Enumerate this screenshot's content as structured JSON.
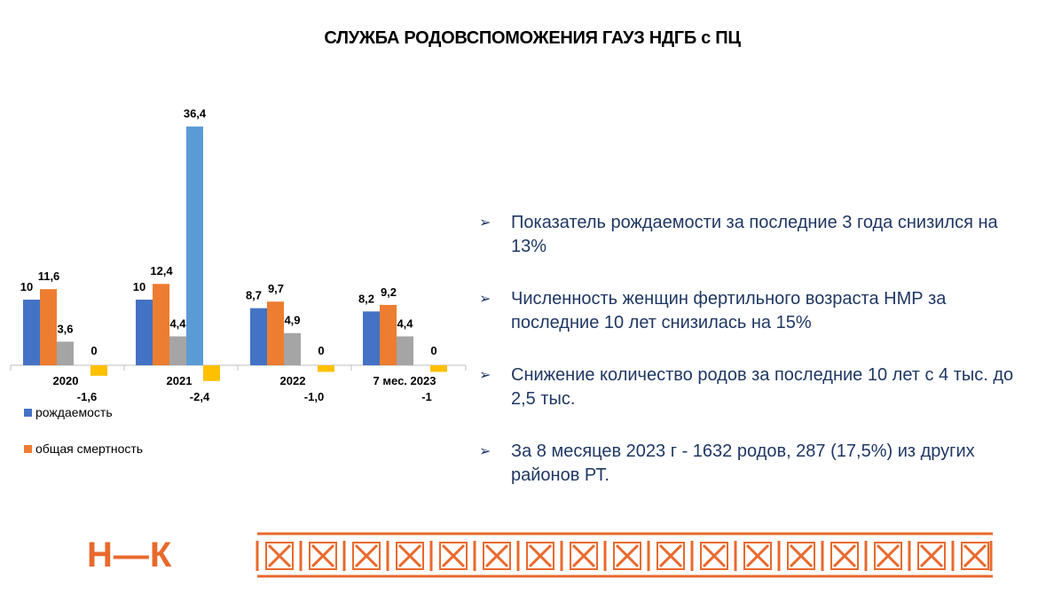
{
  "header": {
    "title": "СЛУЖБА  РОДОВСПОМОЖЕНИЯ ГАУЗ НДГБ с ПЦ"
  },
  "logo": {
    "text": "Н—К"
  },
  "bullets": [
    "Показатель рождаемости за последние 3 года снизился на 13%",
    "Численность женщин фертильного возраста НМР за последние 10 лет снизилась на 15%",
    "Снижение количество родов за последние 10 лет  с 4 тыс. до 2,5 тыс.",
    "За 8 месяцев 2023 г  - 1632 родов, 287 (17,5%) из других районов РТ."
  ],
  "bullet_icon": "arrow-right-icon",
  "colors": {
    "births": "#4472c4",
    "mortality": "#ed7d31",
    "series3": "#a5a5a5",
    "series4": "#5b9bd5",
    "series5": "#ffc000",
    "text_blue": "#1f3864",
    "accent": "#e9692c"
  },
  "chart_data": {
    "type": "bar",
    "categories": [
      "2020",
      "2021",
      "2022",
      "7 мес. 2023"
    ],
    "series": [
      {
        "name": "рождаемость",
        "values": [
          10,
          10,
          8.7,
          8.2
        ],
        "labels": [
          "10",
          "10",
          "8,7",
          "8,2"
        ],
        "color": "#4472c4"
      },
      {
        "name": "общая смертность",
        "values": [
          11.6,
          12.4,
          9.7,
          9.2
        ],
        "labels": [
          "11,6",
          "12,4",
          "9,7",
          "9,2"
        ],
        "color": "#ed7d31"
      },
      {
        "values": [
          3.6,
          4.4,
          4.9,
          4.4
        ],
        "labels": [
          "3,6",
          "4,4",
          "4,9",
          "4,4"
        ],
        "color": "#a5a5a5"
      },
      {
        "values": [
          0,
          36.4,
          0,
          0
        ],
        "labels": [
          "0",
          "36,4",
          "0",
          "0"
        ],
        "color": "#5b9bd5"
      },
      {
        "values": [
          -1.6,
          -2.4,
          -1.0,
          -1.0
        ],
        "labels": [
          "-1,6",
          "-2,4",
          "-1,0",
          "-1"
        ],
        "color": "#ffc000"
      }
    ],
    "legend": [
      {
        "name": "рождаемость",
        "color": "#4472c4"
      },
      {
        "name": "общая смертность",
        "color": "#ed7d31"
      }
    ],
    "legend_position": "bottom-left",
    "grid": false
  }
}
